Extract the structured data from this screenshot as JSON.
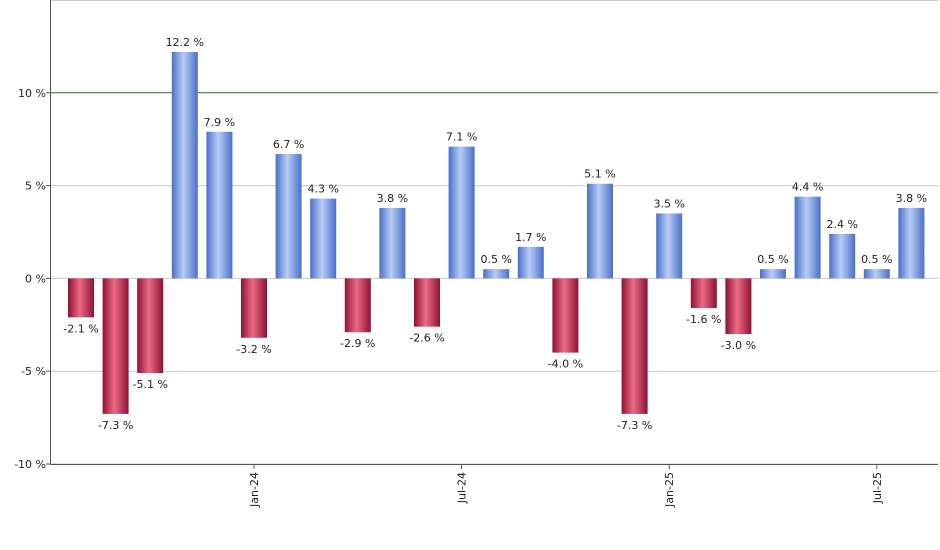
{
  "chart_data": {
    "type": "bar",
    "title": "",
    "xlabel": "",
    "ylabel": "",
    "ylim": [
      -10,
      15
    ],
    "y_ticks": [
      -10,
      -5,
      0,
      5,
      10
    ],
    "y_tick_labels": [
      "-10 %",
      "-5 %",
      "0 %",
      "5 %",
      "10 %"
    ],
    "reference_line": 10,
    "grid": true,
    "x_ticks": [
      {
        "label": "Jan-24",
        "index": 5
      },
      {
        "label": "Jul-24",
        "index": 11
      },
      {
        "label": "Jan-25",
        "index": 17
      },
      {
        "label": "Jul-25",
        "index": 23
      }
    ],
    "values": [
      -2.1,
      -7.3,
      -5.1,
      12.2,
      7.9,
      -3.2,
      6.7,
      4.3,
      -2.9,
      3.8,
      -2.6,
      7.1,
      0.5,
      1.7,
      -4.0,
      5.1,
      -7.3,
      3.5,
      -1.6,
      -3.0,
      0.5,
      4.4,
      2.4,
      0.5,
      3.8
    ],
    "data_labels": [
      "-2.1 %",
      "-7.3 %",
      "-5.1 %",
      "12.2 %",
      "7.9 %",
      "-3.2 %",
      "6.7 %",
      "4.3 %",
      "-2.9 %",
      "3.8 %",
      "-2.6 %",
      "7.1 %",
      "0.5 %",
      "1.7 %",
      "-4.0 %",
      "5.1 %",
      "-7.3 %",
      "3.5 %",
      "-1.6 %",
      "-3.0 %",
      "0.5 %",
      "4.4 %",
      "2.4 %",
      "0.5 %",
      "3.8 %"
    ],
    "colors": {
      "positive_dark": "#4a6fc9",
      "positive_light": "#b8cdf5",
      "negative_dark": "#8e1234",
      "negative_light": "#ec6a84",
      "reference_line": "#2e7d32",
      "grid": "#cccccc",
      "axis": "#555555"
    }
  }
}
